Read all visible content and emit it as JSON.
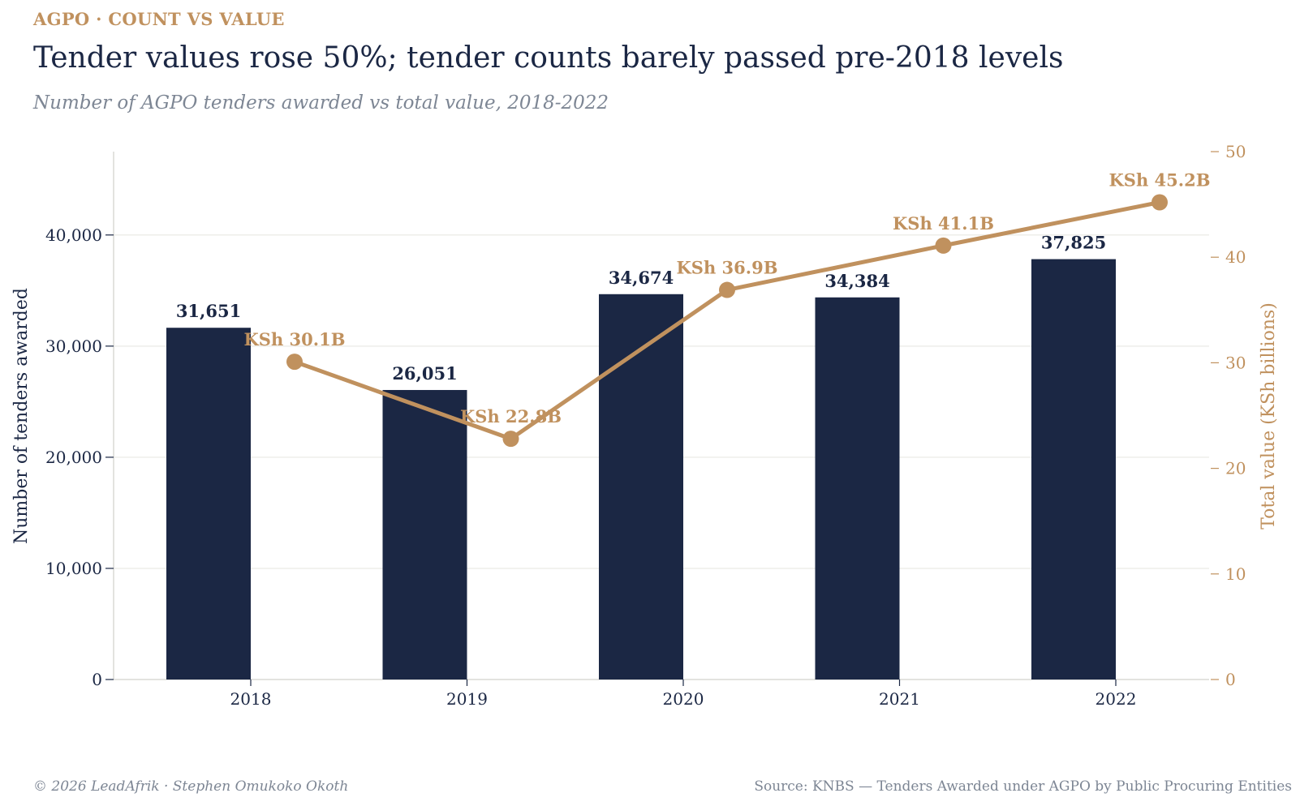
{
  "header": {
    "kicker": "AGPO · COUNT VS VALUE",
    "title": "Tender values rose 50%; tender counts barely passed pre-2018 levels",
    "subtitle": "Number of AGPO tenders awarded vs total value, 2018-2022"
  },
  "footer": {
    "credit": "© 2026 LeadAfrik · Stephen Omukoko Okoth",
    "source": "Source: KNBS — Tenders Awarded under AGPO by Public Procuring Entities"
  },
  "colors": {
    "bar": "#1b2744",
    "line": "#c0915e",
    "text_dark": "#1b2744",
    "grid": "#eeeeea"
  },
  "chart_data": {
    "type": "bar",
    "categories": [
      "2018",
      "2019",
      "2020",
      "2021",
      "2022"
    ],
    "series": [
      {
        "type": "bar",
        "axis": "left",
        "values": [
          31651,
          26051,
          34674,
          34384,
          37825
        ],
        "labels": [
          "31,651",
          "26,051",
          "34,674",
          "34,384",
          "37,825"
        ]
      },
      {
        "type": "line",
        "axis": "right",
        "values": [
          30.1,
          22.8,
          36.9,
          41.1,
          45.2
        ],
        "labels": [
          "KSh 30.1B",
          "KSh 22.8B",
          "KSh 36.9B",
          "KSh 41.1B",
          "KSh 45.2B"
        ]
      }
    ],
    "y_left": {
      "label": "Number of tenders awarded",
      "lim": [
        0,
        47500
      ],
      "ticks": [
        0,
        10000,
        20000,
        30000,
        40000
      ],
      "tick_labels": [
        "0",
        "10,000",
        "20,000",
        "30,000",
        "40,000"
      ]
    },
    "y_right": {
      "label": "Total value (KSh billions)",
      "lim": [
        0,
        50
      ],
      "ticks": [
        0,
        10,
        20,
        30,
        40,
        50
      ],
      "tick_labels": [
        "0",
        "10",
        "20",
        "30",
        "40",
        "50"
      ]
    },
    "grid": true
  }
}
